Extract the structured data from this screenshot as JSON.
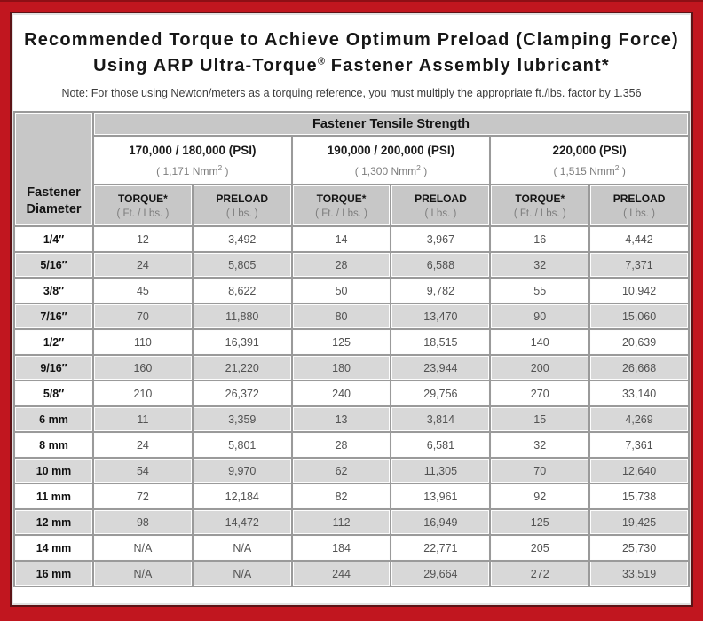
{
  "colors": {
    "frame_red": "#c1161f",
    "frame_dark_line": "#5c1316",
    "header_gray": "#c7c7c7",
    "stripe_gray": "#d8d8d8"
  },
  "title": {
    "line1": "Recommended Torque to Achieve Optimum Preload (Clamping Force)",
    "line2_prefix": "Using ARP Ultra-Torque",
    "registered_mark": "®",
    "line2_suffix": " Fastener Assembly lubricant*"
  },
  "note": "Note: For those using Newton/meters as a torquing reference, you must multiply the appropriate ft./lbs. factor by 1.356",
  "chart_data": {
    "type": "table",
    "title": "Recommended Torque to Achieve Optimum Preload (Clamping Force) Using ARP Ultra-Torque® Fastener Assembly lubricant*",
    "corner_header": {
      "line1": "Fastener",
      "line2": "Diameter"
    },
    "tensile_strength_header": "Fastener Tensile Strength",
    "groups": [
      {
        "psi_label": "170,000 / 180,000 (PSI)",
        "nmm_prefix": "( 1,171 Nmm",
        "nmm_sup": "2",
        "nmm_suffix": " )"
      },
      {
        "psi_label": "190,000 / 200,000 (PSI)",
        "nmm_prefix": "( 1,300 Nmm",
        "nmm_sup": "2",
        "nmm_suffix": " )"
      },
      {
        "psi_label": "220,000 (PSI)",
        "nmm_prefix": "( 1,515 Nmm",
        "nmm_sup": "2",
        "nmm_suffix": " )"
      }
    ],
    "column_headers": {
      "torque_label": "TORQUE*",
      "torque_sub": "( Ft. / Lbs. )",
      "preload_label": "PRELOAD",
      "preload_sub": "( Lbs. )"
    },
    "rows": [
      {
        "diameter": "1/4″",
        "values": [
          "12",
          "3,492",
          "14",
          "3,967",
          "16",
          "4,442"
        ]
      },
      {
        "diameter": "5/16″",
        "values": [
          "24",
          "5,805",
          "28",
          "6,588",
          "32",
          "7,371"
        ]
      },
      {
        "diameter": "3/8″",
        "values": [
          "45",
          "8,622",
          "50",
          "9,782",
          "55",
          "10,942"
        ]
      },
      {
        "diameter": "7/16″",
        "values": [
          "70",
          "11,880",
          "80",
          "13,470",
          "90",
          "15,060"
        ]
      },
      {
        "diameter": "1/2″",
        "values": [
          "110",
          "16,391",
          "125",
          "18,515",
          "140",
          "20,639"
        ]
      },
      {
        "diameter": "9/16″",
        "values": [
          "160",
          "21,220",
          "180",
          "23,944",
          "200",
          "26,668"
        ]
      },
      {
        "diameter": "5/8″",
        "values": [
          "210",
          "26,372",
          "240",
          "29,756",
          "270",
          "33,140"
        ]
      },
      {
        "diameter": "6 mm",
        "values": [
          "11",
          "3,359",
          "13",
          "3,814",
          "15",
          "4,269"
        ]
      },
      {
        "diameter": "8 mm",
        "values": [
          "24",
          "5,801",
          "28",
          "6,581",
          "32",
          "7,361"
        ]
      },
      {
        "diameter": "10 mm",
        "values": [
          "54",
          "9,970",
          "62",
          "11,305",
          "70",
          "12,640"
        ]
      },
      {
        "diameter": "11 mm",
        "values": [
          "72",
          "12,184",
          "82",
          "13,961",
          "92",
          "15,738"
        ]
      },
      {
        "diameter": "12 mm",
        "values": [
          "98",
          "14,472",
          "112",
          "16,949",
          "125",
          "19,425"
        ]
      },
      {
        "diameter": "14 mm",
        "values": [
          "N/A",
          "N/A",
          "184",
          "22,771",
          "205",
          "25,730"
        ]
      },
      {
        "diameter": "16 mm",
        "values": [
          "N/A",
          "N/A",
          "244",
          "29,664",
          "272",
          "33,519"
        ]
      }
    ]
  }
}
